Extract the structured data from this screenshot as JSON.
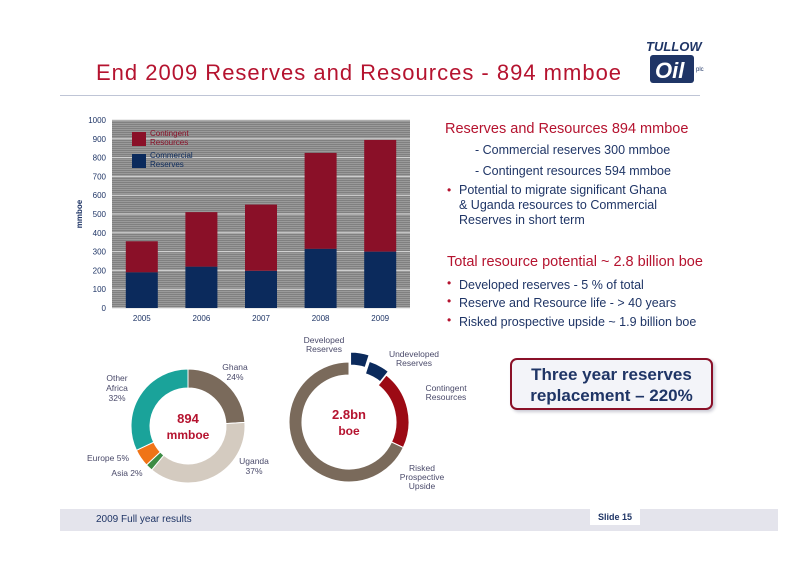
{
  "title": "End 2009 Reserves and Resources - 894 mmboe",
  "logo": {
    "top": "TULLOW",
    "mark": "Oil",
    "suffix": "plc"
  },
  "chart_data": [
    {
      "type": "bar",
      "stacked": true,
      "categories": [
        "2005",
        "2006",
        "2007",
        "2008",
        "2009"
      ],
      "series": [
        {
          "name": "Commercial Reserves",
          "color": "#0b2a5c",
          "values": [
            190,
            220,
            198,
            315,
            300
          ]
        },
        {
          "name": "Contingent Resources",
          "color": "#8a1028",
          "values": [
            165,
            290,
            352,
            510,
            594
          ]
        }
      ],
      "ylabel": "mmboe",
      "ylim": [
        0,
        1000
      ],
      "yticks": [
        0,
        100,
        200,
        300,
        400,
        500,
        600,
        700,
        800,
        900,
        1000
      ],
      "grid": true,
      "legend": "top-left"
    },
    {
      "type": "pie",
      "center_label": "894 mmboe",
      "slices": [
        {
          "label": "Ghana",
          "pct_label": "24%",
          "value": 24,
          "color": "#7a6a5b"
        },
        {
          "label": "Uganda",
          "pct_label": "37%",
          "value": 37,
          "color": "#d4cbc0"
        },
        {
          "label": "Asia",
          "pct_label": "2%",
          "value": 2,
          "color": "#3d8c45"
        },
        {
          "label": "Europe",
          "pct_label": "5%",
          "value": 5,
          "color": "#f07417"
        },
        {
          "label": "Other Africa",
          "pct_label": "32%",
          "value": 32,
          "color": "#1aa39a"
        }
      ]
    },
    {
      "type": "pie",
      "center_label": "2.8bn boe",
      "slices": [
        {
          "label": "Developed Reserves",
          "value": 5,
          "color": "#0b2a5c"
        },
        {
          "label": "Undeveloped Reserves",
          "value": 5.7,
          "color": "#0b2a5c"
        },
        {
          "label": "Contingent Resources",
          "value": 21.3,
          "color": "#9c0a14"
        },
        {
          "label": "Risked Prospective Upside",
          "value": 68,
          "color": "#7a6a5b"
        }
      ]
    }
  ],
  "bar_legend": {
    "contingent": "Contingent Resources",
    "commercial": "Commercial Reserves"
  },
  "pie1_labels": {
    "ghana": "Ghana",
    "ghana_pct": "24%",
    "uganda": "Uganda",
    "uganda_pct": "37%",
    "other_africa": "Other Africa",
    "other_africa_pct": "32%",
    "europe": "Europe 5%",
    "asia": "Asia 2%",
    "center_line1": "894",
    "center_line2": "mmboe"
  },
  "pie2_labels": {
    "developed": "Developed Reserves",
    "undeveloped": "Undeveloped Reserves",
    "contingent": "Contingent Resources",
    "risked": "Risked Prospective Upside",
    "center_line1": "2.8bn",
    "center_line2": "boe"
  },
  "right": {
    "heading1": "Reserves and Resources 894 mmboe",
    "sub1": "-  Commercial reserves 300 mmboe",
    "sub2": "-  Contingent resources 594 mmboe",
    "bullet1_l1": "Potential to migrate significant Ghana",
    "bullet1_l2": "& Uganda resources to Commercial",
    "bullet1_l3": "Reserves in short term",
    "heading2": "Total resource potential ~ 2.8 billion boe",
    "bullet2": "Developed reserves  - 5 % of total",
    "bullet3": "Reserve and Resource life - >  40 years",
    "bullet4": "Risked prospective upside ~ 1.9 billion boe"
  },
  "callout": {
    "line1": "Three year reserves",
    "line2": "replacement – 220%"
  },
  "footer": {
    "text": "2009 Full year results",
    "slide": "Slide 15"
  },
  "colors": {
    "brand_red": "#b5132f",
    "navy": "#0b2a5c",
    "maroon": "#8a1028"
  }
}
